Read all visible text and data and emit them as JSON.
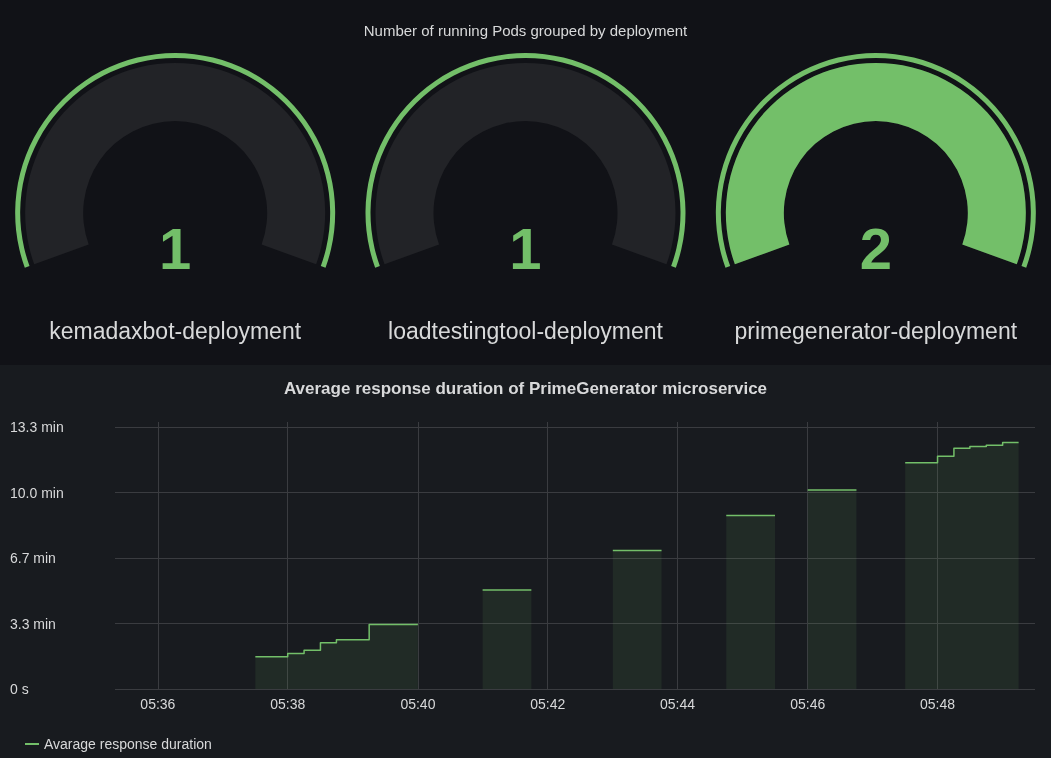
{
  "chart_data": [
    {
      "type": "other",
      "title": "Number of running Pods grouped by deployment",
      "categories": [
        "kemadaxbot-deployment",
        "loadtestingtool-deployment",
        "primegenerator-deployment"
      ],
      "values": [
        1,
        1,
        2
      ],
      "color": "#73bf69",
      "data_labels": true
    },
    {
      "type": "area",
      "title": "Average response duration of PrimeGenerator microservice",
      "series": [
        {
          "name": "Avarage response duration",
          "color": "#73bf69",
          "x": [
            5.625,
            5.6333,
            5.6333,
            5.6375,
            5.6375,
            5.6417,
            5.6417,
            5.6458,
            5.6458,
            5.6542,
            5.6542,
            5.6667,
            5.675,
            5.6833,
            5.6958,
            5.7,
            5.7167,
            5.7292,
            5.733,
            5.7458,
            5.7583,
            5.762,
            5.7667,
            5.7792,
            5.785,
            5.7917,
            5.8,
            5.8,
            5.8042,
            5.8042,
            5.8083,
            5.8083,
            5.8125,
            5.8125,
            5.8167,
            5.8167,
            5.8208
          ],
          "values": [
            1.64,
            1.64,
            1.81,
            1.81,
            1.97,
            1.97,
            2.36,
            2.36,
            2.51,
            2.51,
            3.29,
            3.29,
            null,
            5.04,
            5.04,
            null,
            7.06,
            7.06,
            null,
            8.84,
            8.84,
            null,
            10.13,
            10.13,
            null,
            11.52,
            11.52,
            11.86,
            11.86,
            12.26,
            12.26,
            12.35,
            12.35,
            12.42,
            12.42,
            12.56,
            12.56
          ]
        }
      ],
      "xlim": [
        5.589,
        5.825
      ],
      "xticks": [
        {
          "value": 5.6,
          "label": "05:36"
        },
        {
          "value": 5.6333,
          "label": "05:38"
        },
        {
          "value": 5.6667,
          "label": "05:40"
        },
        {
          "value": 5.7,
          "label": "05:42"
        },
        {
          "value": 5.7333,
          "label": "05:44"
        },
        {
          "value": 5.7667,
          "label": "05:46"
        },
        {
          "value": 5.8,
          "label": "05:48"
        }
      ],
      "ylim": [
        0,
        13.6
      ],
      "yticks": [
        {
          "value": 0,
          "label": "0 s"
        },
        {
          "value": 3.333,
          "label": "3.3 min"
        },
        {
          "value": 6.667,
          "label": "6.7 min"
        },
        {
          "value": 10,
          "label": "10.0 min"
        },
        {
          "value": 13.333,
          "label": "13.3 min"
        }
      ],
      "grid": true,
      "legend": "bottom left"
    }
  ]
}
